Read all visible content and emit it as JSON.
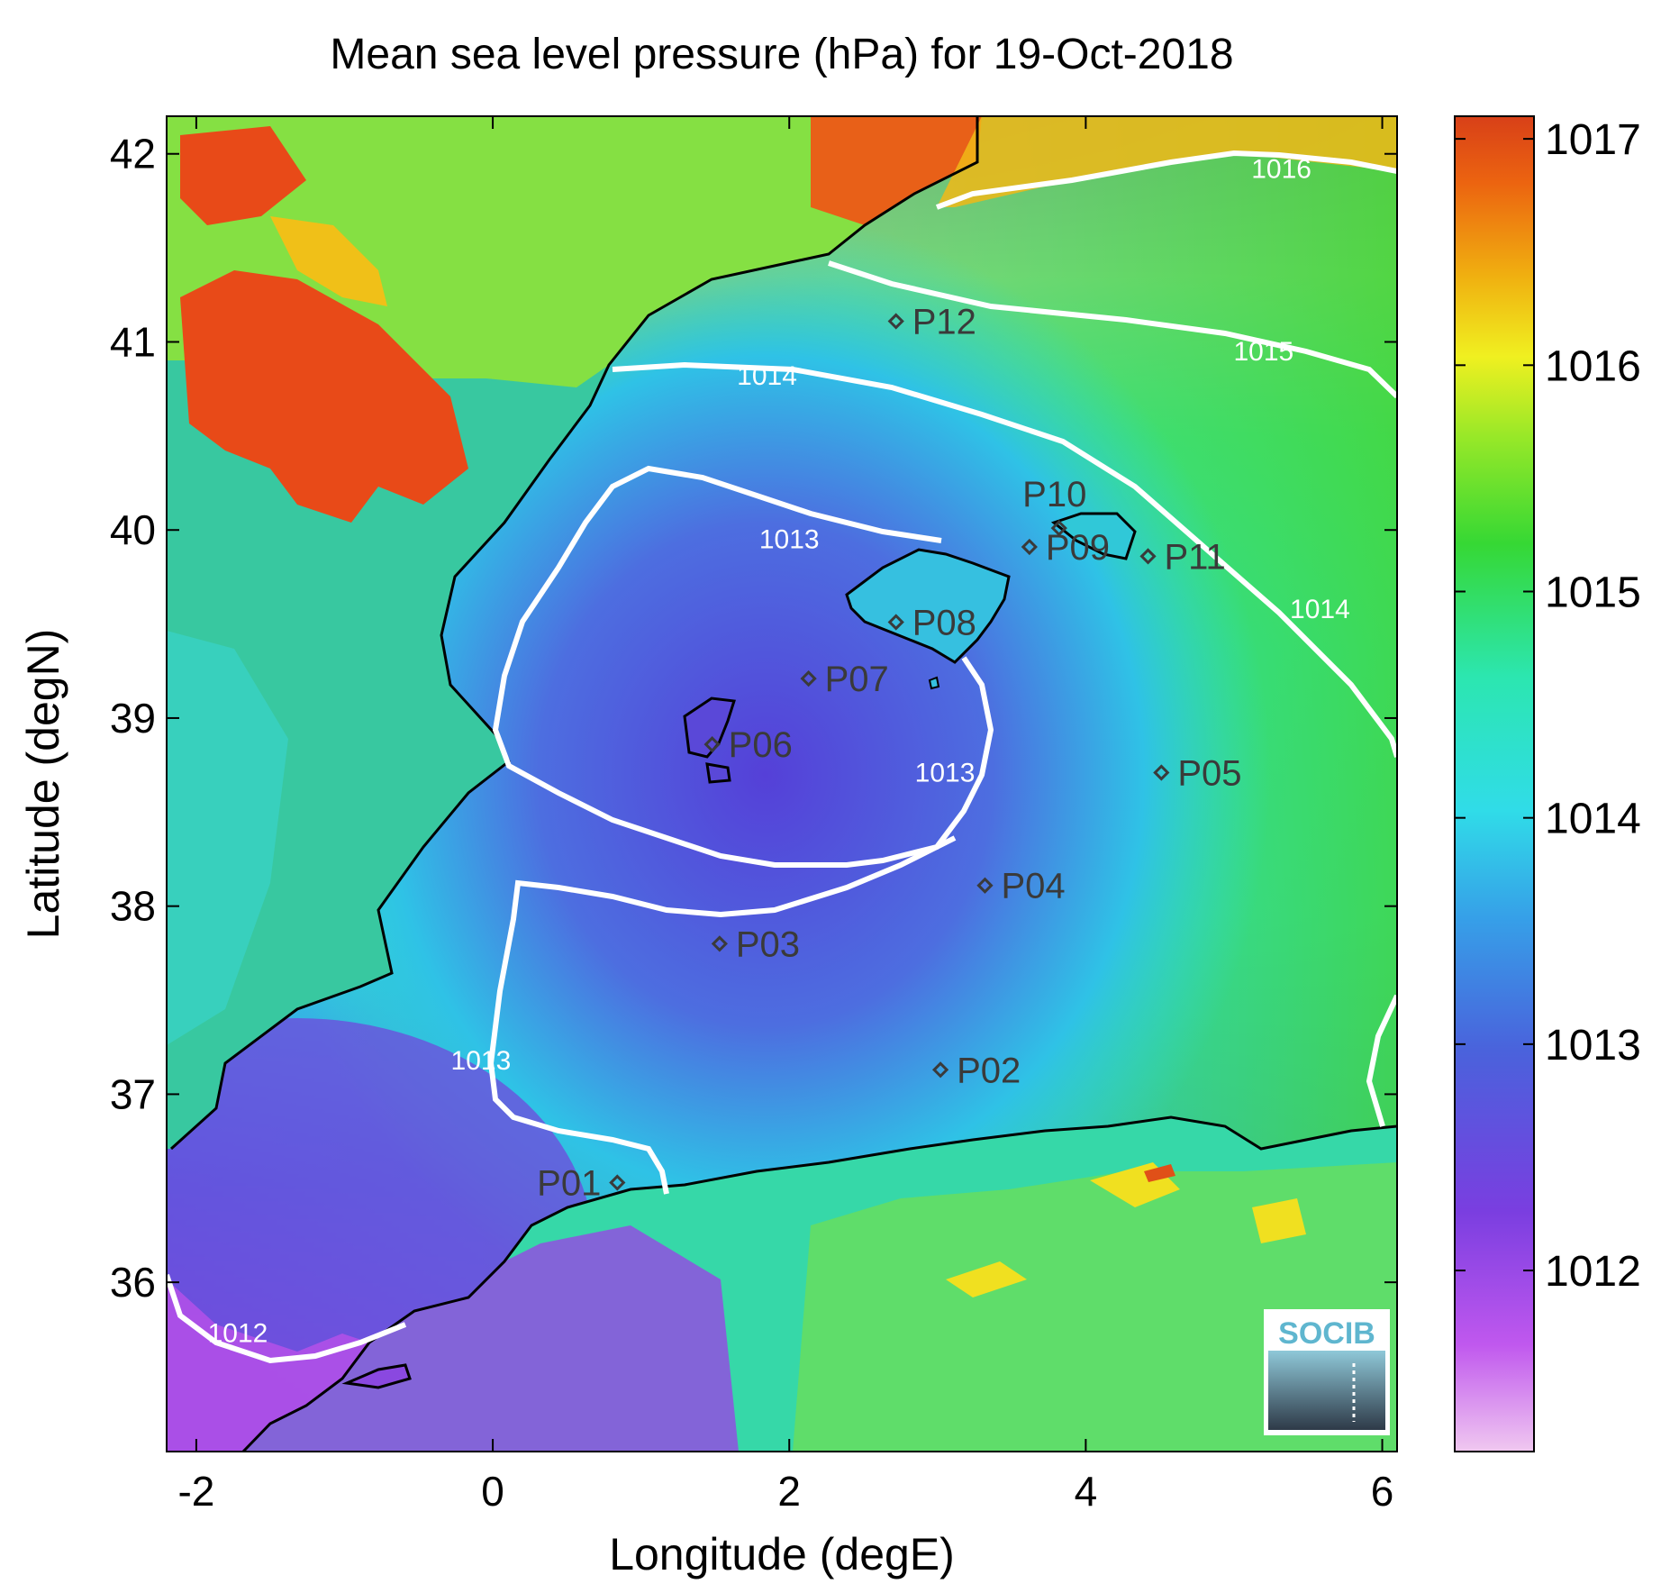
{
  "title": "Mean sea level pressure (hPa) for 19-Oct-2018",
  "map": {
    "xlabel": "Longitude (degE)",
    "ylabel": "Latitude (degN)",
    "xlim": [
      -2.2,
      6.1
    ],
    "ylim": [
      35.1,
      42.2
    ],
    "xticks": [
      {
        "value": -2,
        "label": "-2"
      },
      {
        "value": 0,
        "label": "0"
      },
      {
        "value": 2,
        "label": "2"
      },
      {
        "value": 4,
        "label": "4"
      },
      {
        "value": 6,
        "label": "6"
      }
    ],
    "yticks": [
      {
        "value": 36,
        "label": "36"
      },
      {
        "value": 37,
        "label": "37"
      },
      {
        "value": 38,
        "label": "38"
      },
      {
        "value": 39,
        "label": "39"
      },
      {
        "value": 40,
        "label": "40"
      },
      {
        "value": 41,
        "label": "41"
      },
      {
        "value": 42,
        "label": "42"
      }
    ]
  },
  "colorbar": {
    "range": [
      1011.2,
      1017.1
    ],
    "ticks": [
      {
        "value": 1012,
        "label": "1012"
      },
      {
        "value": 1013,
        "label": "1013"
      },
      {
        "value": 1014,
        "label": "1014"
      },
      {
        "value": 1015,
        "label": "1015"
      },
      {
        "value": 1016,
        "label": "1016"
      },
      {
        "value": 1017,
        "label": "1017"
      }
    ],
    "colormap": [
      "#f0c8f0",
      "#b040e8",
      "#5a4ad8",
      "#3f70e0",
      "#30c8e8",
      "#28e8b8",
      "#38d838",
      "#e8f020",
      "#f0b010",
      "#e85010",
      "#d84018"
    ]
  },
  "contour_labels": [
    {
      "text": "1016",
      "lon": 5.32,
      "lat": 41.92
    },
    {
      "text": "1015",
      "lon": 5.2,
      "lat": 40.95
    },
    {
      "text": "1014",
      "lon": 1.85,
      "lat": 40.82
    },
    {
      "text": "1014",
      "lon": 5.58,
      "lat": 39.58
    },
    {
      "text": "1013",
      "lon": 2.0,
      "lat": 39.95
    },
    {
      "text": "1013",
      "lon": 3.05,
      "lat": 38.71
    },
    {
      "text": "1013",
      "lon": -0.08,
      "lat": 37.18
    },
    {
      "text": "1012",
      "lon": -1.72,
      "lat": 35.73
    }
  ],
  "stations": [
    {
      "id": "P01",
      "lon": 0.84,
      "lat": 36.53
    },
    {
      "id": "P02",
      "lon": 3.02,
      "lat": 37.13
    },
    {
      "id": "P03",
      "lon": 1.53,
      "lat": 37.8
    },
    {
      "id": "P04",
      "lon": 3.32,
      "lat": 38.11
    },
    {
      "id": "P05",
      "lon": 4.51,
      "lat": 38.71
    },
    {
      "id": "P06",
      "lon": 1.48,
      "lat": 38.86
    },
    {
      "id": "P07",
      "lon": 2.13,
      "lat": 39.21
    },
    {
      "id": "P08",
      "lon": 2.72,
      "lat": 39.51
    },
    {
      "id": "P09",
      "lon": 3.62,
      "lat": 39.91
    },
    {
      "id": "P10",
      "lon": 3.82,
      "lat": 40.01
    },
    {
      "id": "P11",
      "lon": 4.42,
      "lat": 39.86
    },
    {
      "id": "P12",
      "lon": 2.72,
      "lat": 41.11
    }
  ],
  "logo": {
    "text": "SOCIB"
  }
}
